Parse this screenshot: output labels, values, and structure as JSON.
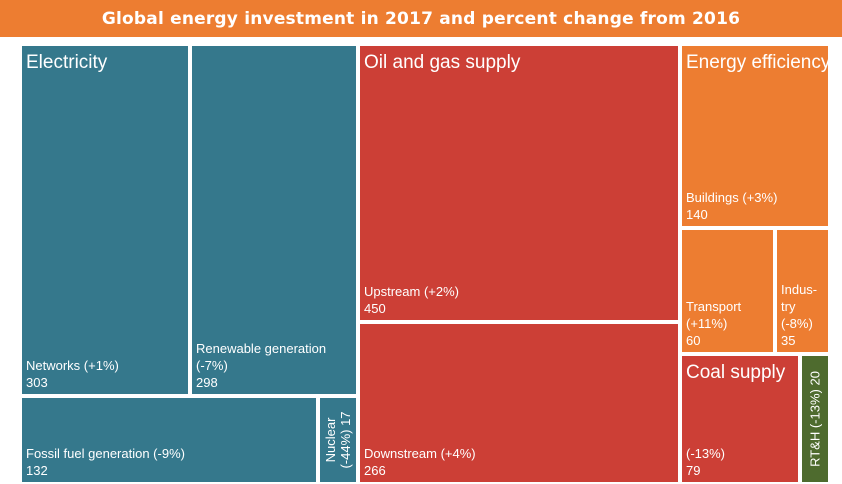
{
  "title": "Global energy investment in 2017 and percent change from 2016",
  "colors": {
    "electricity": "#35788c",
    "oil_gas": "#cc3f36",
    "efficiency": "#ed7d31",
    "coal": "#cc3f36",
    "rth": "#4e6b2e",
    "title_bg": "#ed7d31"
  },
  "chart_data": {
    "type": "treemap",
    "title": "Global energy investment in 2017 and percent change from 2016",
    "groups": [
      {
        "key": "electricity",
        "name": "Electricity",
        "items": [
          {
            "key": "networks",
            "name": "Networks",
            "change": "(+1%)",
            "value": 303
          },
          {
            "key": "renewable",
            "name": "Renewable generation",
            "change": "(-7%)",
            "value": 298
          },
          {
            "key": "fossil",
            "name": "Fossil fuel generation",
            "change": "(-9%)",
            "value": 132
          },
          {
            "key": "nuclear",
            "name": "Nuclear",
            "change": "(-44%)",
            "value": 17
          }
        ]
      },
      {
        "key": "oil_gas",
        "name": "Oil and gas supply",
        "items": [
          {
            "key": "upstream",
            "name": "Upstream",
            "change": "(+2%)",
            "value": 450
          },
          {
            "key": "downstream",
            "name": "Downstream",
            "change": "(+4%)",
            "value": 266
          }
        ]
      },
      {
        "key": "efficiency",
        "name": "Energy efficiency",
        "items": [
          {
            "key": "buildings",
            "name": "Buildings",
            "change": "(+3%)",
            "value": 140
          },
          {
            "key": "transport",
            "name": "Transport",
            "change": "(+11%)",
            "value": 60
          },
          {
            "key": "industry",
            "name": "Indus-\ntry",
            "change": "(-8%)",
            "value": 35
          }
        ]
      },
      {
        "key": "coal",
        "name": "Coal supply",
        "items": [
          {
            "key": "coal_supply",
            "name": "",
            "change": "(-13%)",
            "value": 79
          }
        ]
      },
      {
        "key": "rth",
        "name": "",
        "items": [
          {
            "key": "rth",
            "name": "RT&H",
            "change": "(-13%)",
            "value": 20
          }
        ]
      }
    ]
  }
}
